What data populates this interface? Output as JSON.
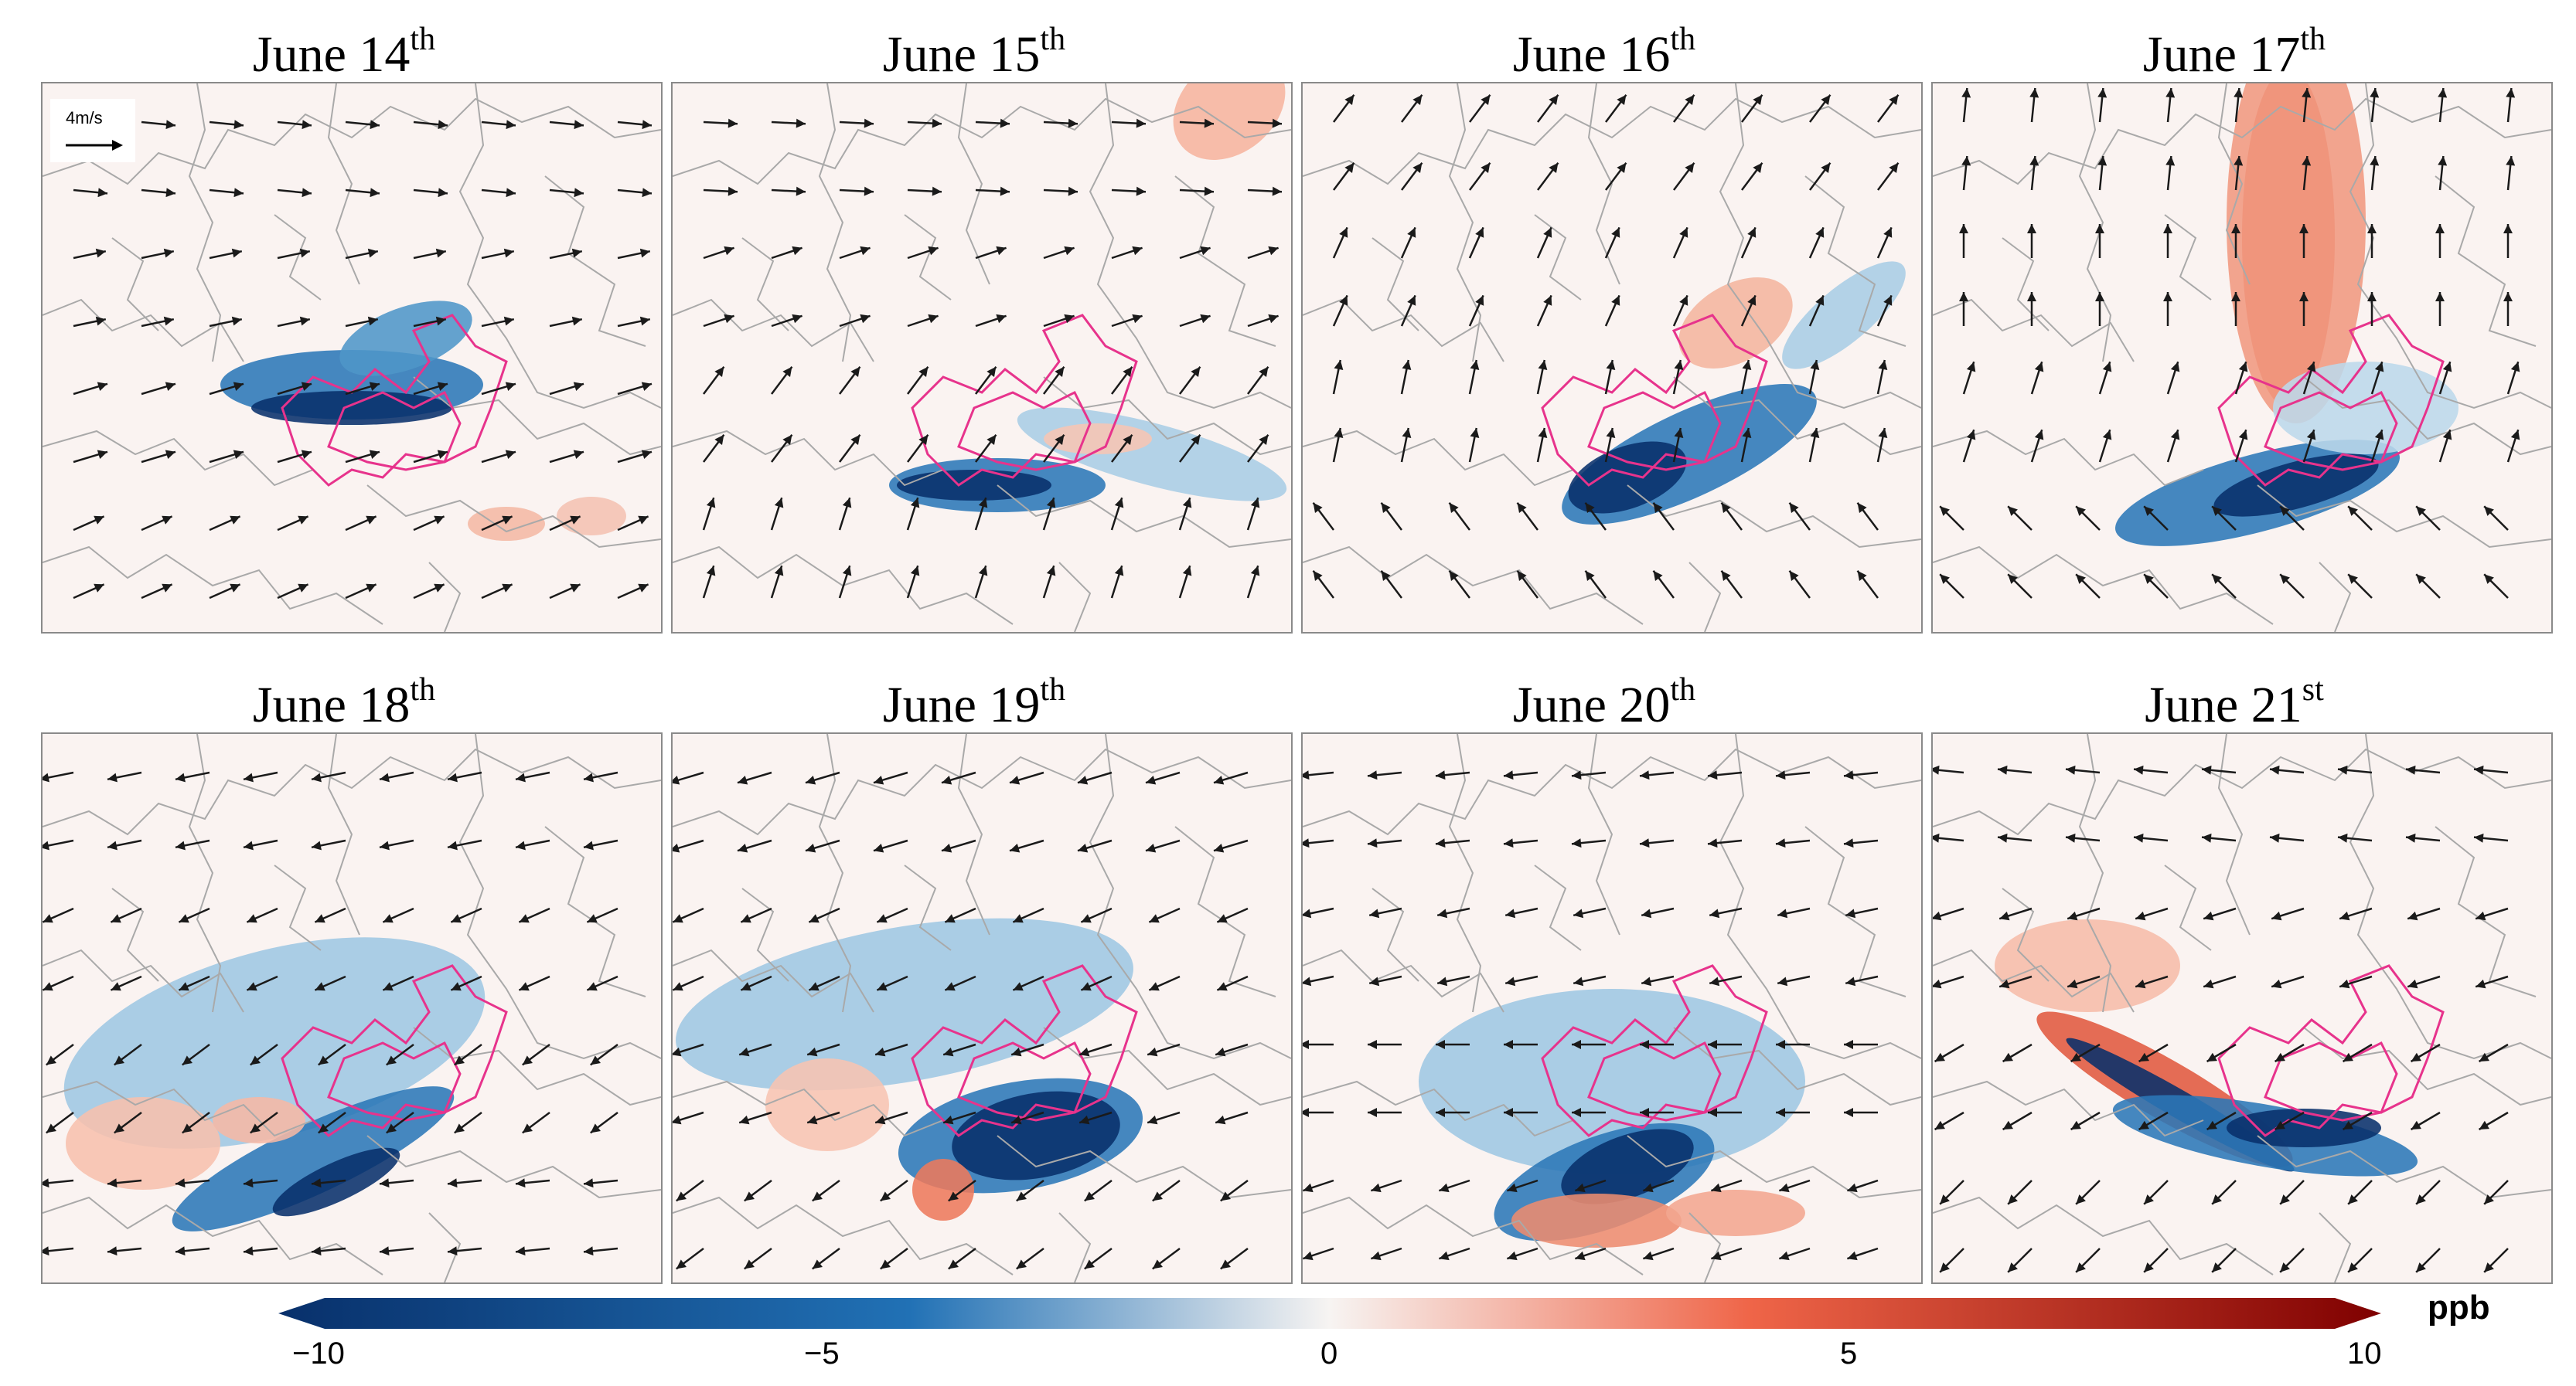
{
  "panels": [
    {
      "id": "p1",
      "title": "June 14",
      "suffix": "th"
    },
    {
      "id": "p2",
      "title": "June 15",
      "suffix": "th"
    },
    {
      "id": "p3",
      "title": "June 16",
      "suffix": "th"
    },
    {
      "id": "p4",
      "title": "June 17",
      "suffix": "th"
    },
    {
      "id": "p5",
      "title": "June 18",
      "suffix": "th"
    },
    {
      "id": "p6",
      "title": "June 19",
      "suffix": "th"
    },
    {
      "id": "p7",
      "title": "June 20",
      "suffix": "th"
    },
    {
      "id": "p8",
      "title": "June 21",
      "suffix": "st"
    }
  ],
  "wind_scale": {
    "label": "4m/s"
  },
  "colorbar": {
    "min": -10,
    "max": 10,
    "unit": "ppb",
    "ticks": [
      "−10",
      "−5",
      "0",
      "5",
      "10"
    ],
    "tick_values": [
      -10,
      -5,
      0,
      5,
      10
    ],
    "colors": {
      "negative_extreme": "#08306b",
      "negative": "#2171b5",
      "near_zero": "#f7f4f2",
      "positive": "#ef6548",
      "positive_extreme": "#7f0000"
    }
  },
  "colors": {
    "boundary": "#a9a9a9",
    "region_outline": "#e7338c",
    "wind_arrow": "#1a1a1a"
  }
}
